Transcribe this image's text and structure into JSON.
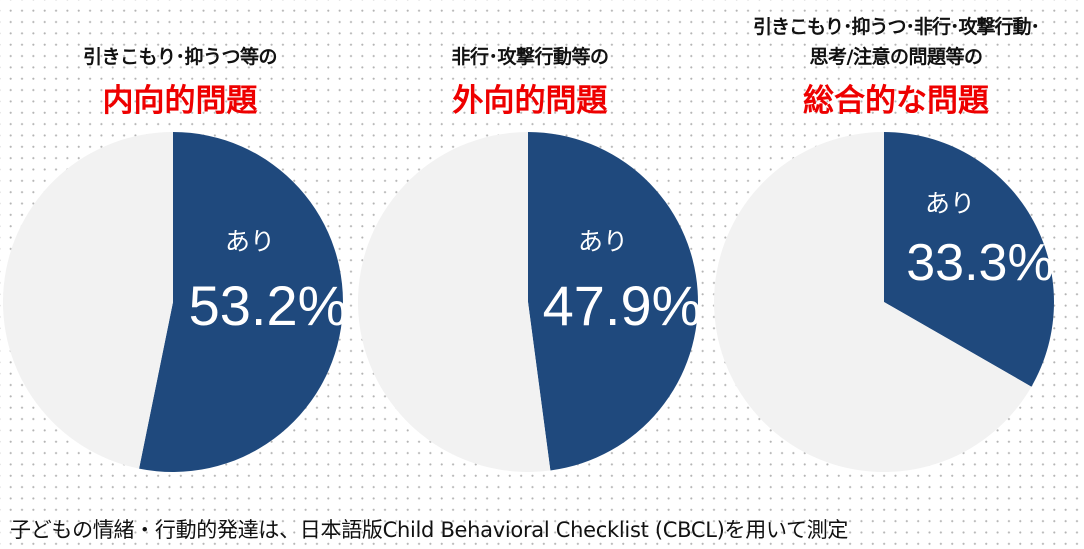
{
  "chart_data": [
    {
      "type": "pie",
      "subtitle": "引きこもり･抑うつ等の",
      "title": "内向的問題",
      "slices": [
        {
          "label": "あり",
          "value": 53.2,
          "display": "53.2%",
          "color": "#1f497d"
        },
        {
          "label": "",
          "value": 46.8,
          "color": "#f2f2f2"
        }
      ]
    },
    {
      "type": "pie",
      "subtitle": "非行･攻撃行動等の",
      "title": "外向的問題",
      "slices": [
        {
          "label": "あり",
          "value": 47.9,
          "display": "47.9%",
          "color": "#1f497d"
        },
        {
          "label": "",
          "value": 52.1,
          "color": "#f2f2f2"
        }
      ]
    },
    {
      "type": "pie",
      "subtitle_lines": [
        "引きこもり･抑うつ･非行･攻撃行動･",
        "思考/注意の問題等の"
      ],
      "title": "総合的な問題",
      "slices": [
        {
          "label": "あり",
          "value": 33.3,
          "display": "33.3%",
          "color": "#1f497d"
        },
        {
          "label": "",
          "value": 66.7,
          "color": "#f2f2f2"
        }
      ]
    }
  ],
  "footnote": "子どもの情緒・行動的発達は、日本語版Child Behavioral Checklist (CBCL)を用いて測定"
}
